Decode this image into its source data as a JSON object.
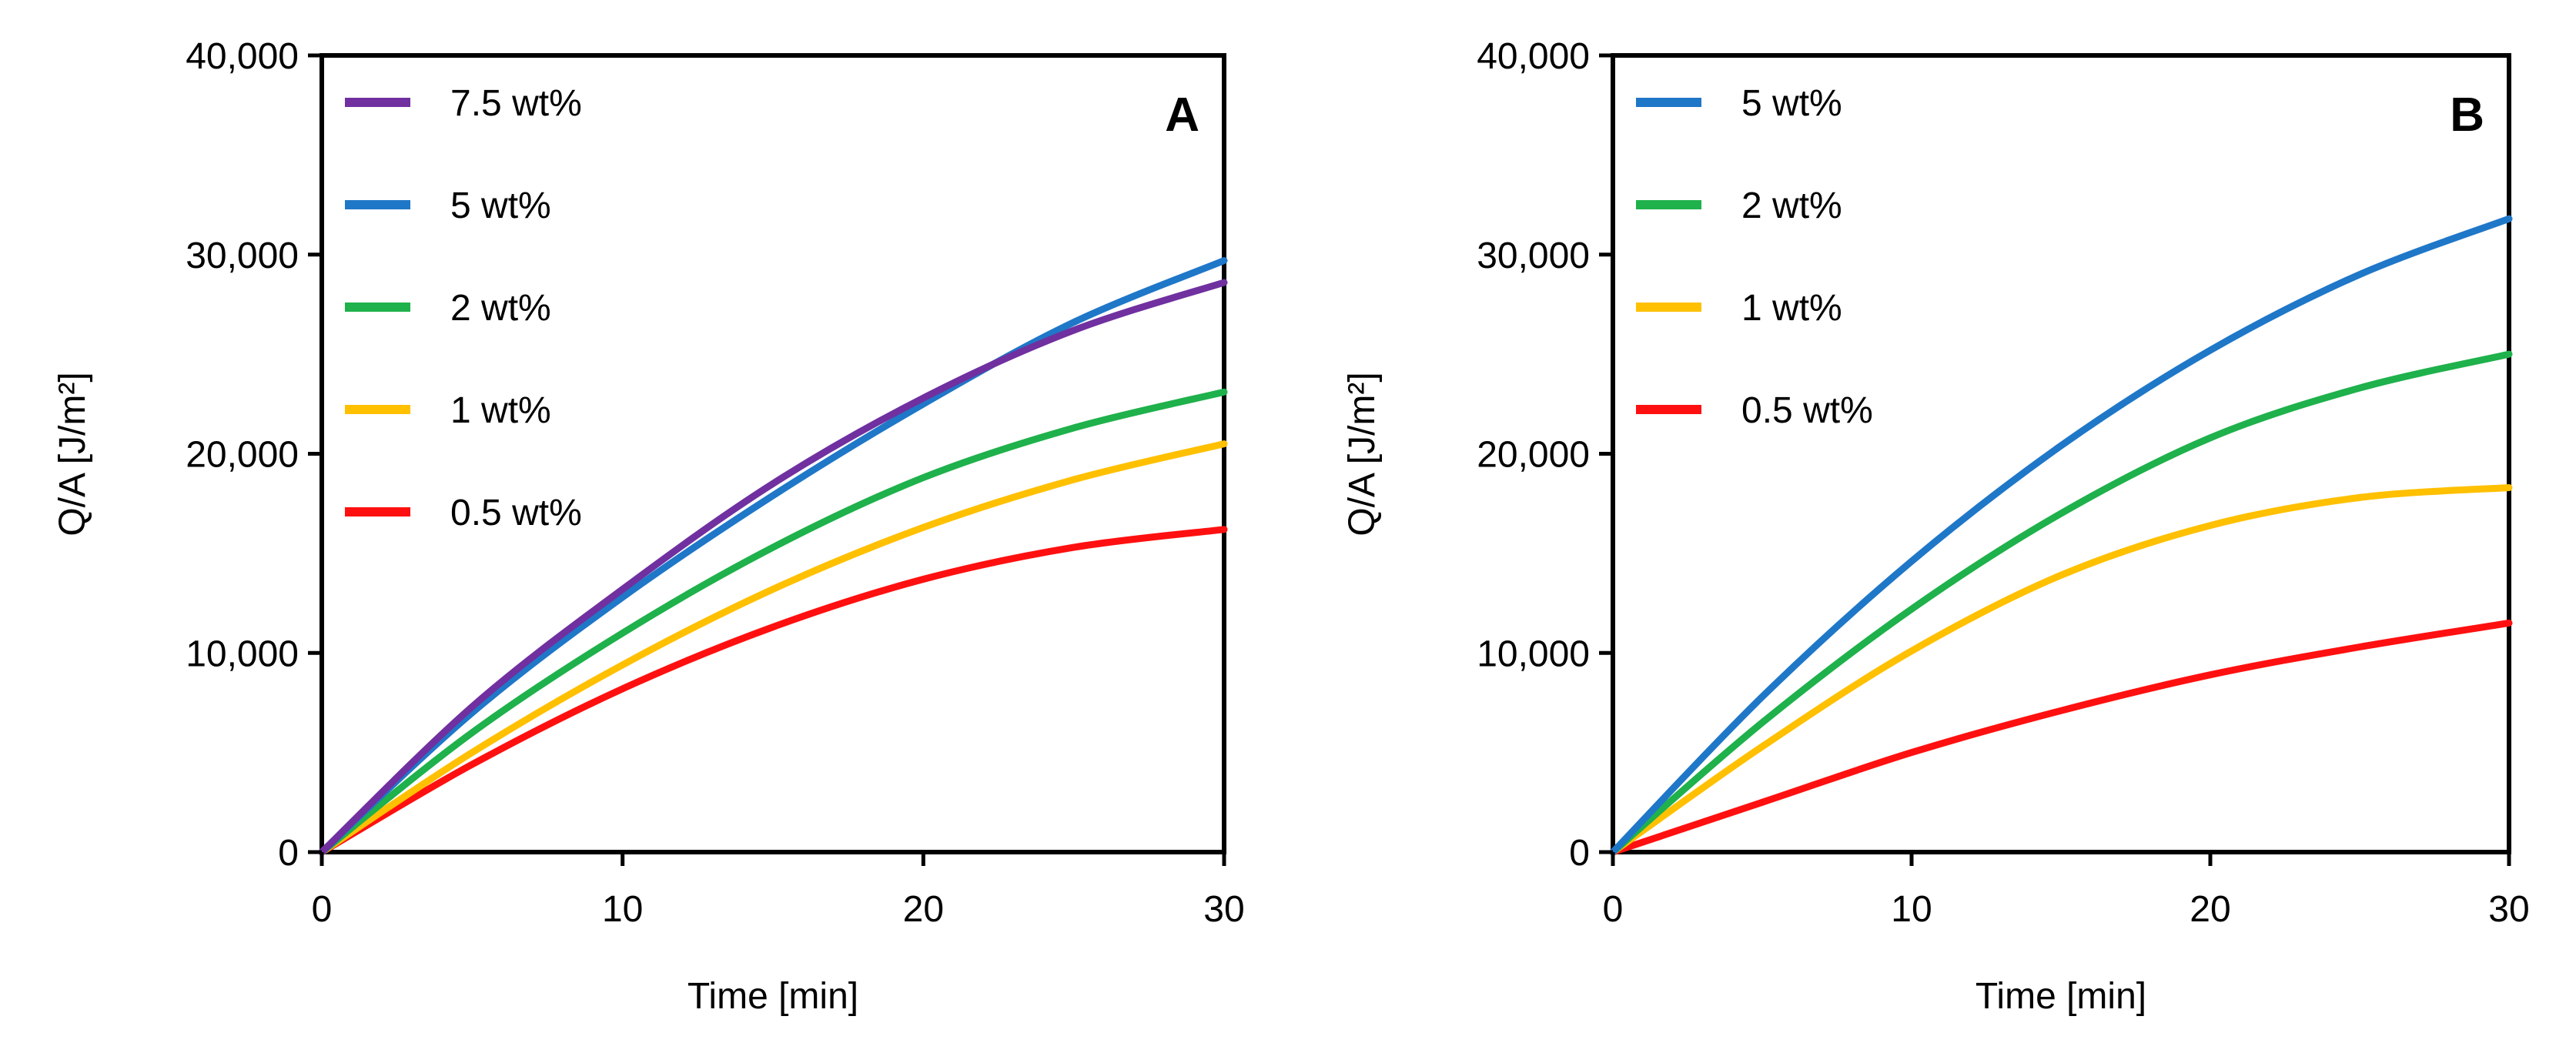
{
  "chart_data": [
    {
      "type": "line",
      "panel_label": "A",
      "xlabel": "Time [min]",
      "ylabel": "Q/A [J/m²]",
      "xlim": [
        0,
        30
      ],
      "ylim": [
        0,
        40000
      ],
      "xticks": [
        0,
        10,
        20,
        30
      ],
      "yticks": [
        0,
        10000,
        20000,
        30000,
        40000
      ],
      "ytick_labels": [
        "0",
        "10,000",
        "20,000",
        "30,000",
        "40,000"
      ],
      "xtick_labels": [
        "0",
        "10",
        "20",
        "30"
      ],
      "legend_position": "top-left",
      "x": [
        0,
        5,
        10,
        15,
        20,
        25,
        30
      ],
      "series": [
        {
          "name": "7.5 wt%",
          "color": "#7030A0",
          "values": [
            0,
            7300,
            13200,
            18500,
            22800,
            26200,
            28600
          ]
        },
        {
          "name": "5 wt%",
          "color": "#1F77C8",
          "values": [
            0,
            7000,
            12800,
            17900,
            22500,
            26600,
            29700
          ]
        },
        {
          "name": "2 wt%",
          "color": "#1FB14B",
          "values": [
            0,
            6000,
            11000,
            15300,
            18800,
            21300,
            23100
          ]
        },
        {
          "name": "1 wt%",
          "color": "#FFC000",
          "values": [
            0,
            5000,
            9400,
            13200,
            16300,
            18700,
            20500
          ]
        },
        {
          "name": "0.5 wt%",
          "color": "#FF1010",
          "values": [
            0,
            4400,
            8200,
            11300,
            13700,
            15300,
            16200
          ]
        }
      ]
    },
    {
      "type": "line",
      "panel_label": "B",
      "xlabel": "Time [min]",
      "ylabel": "Q/A [J/m²]",
      "xlim": [
        0,
        30
      ],
      "ylim": [
        0,
        40000
      ],
      "xticks": [
        0,
        10,
        20,
        30
      ],
      "yticks": [
        0,
        10000,
        20000,
        30000,
        40000
      ],
      "ytick_labels": [
        "0",
        "10,000",
        "20,000",
        "30,000",
        "40,000"
      ],
      "xtick_labels": [
        "0",
        "10",
        "20",
        "30"
      ],
      "legend_position": "top-left",
      "x": [
        0,
        5,
        10,
        15,
        20,
        25,
        30
      ],
      "series": [
        {
          "name": "5 wt%",
          "color": "#1F77C8",
          "values": [
            0,
            7800,
            14600,
            20400,
            25200,
            29000,
            31800
          ]
        },
        {
          "name": "2 wt%",
          "color": "#1FB14B",
          "values": [
            0,
            6500,
            12200,
            17000,
            20800,
            23300,
            25000
          ]
        },
        {
          "name": "1 wt%",
          "color": "#FFC000",
          "values": [
            0,
            5300,
            10100,
            13900,
            16400,
            17800,
            18300
          ]
        },
        {
          "name": "0.5 wt%",
          "color": "#FF1010",
          "values": [
            0,
            2500,
            5000,
            7100,
            8900,
            10300,
            11500
          ]
        }
      ]
    }
  ]
}
